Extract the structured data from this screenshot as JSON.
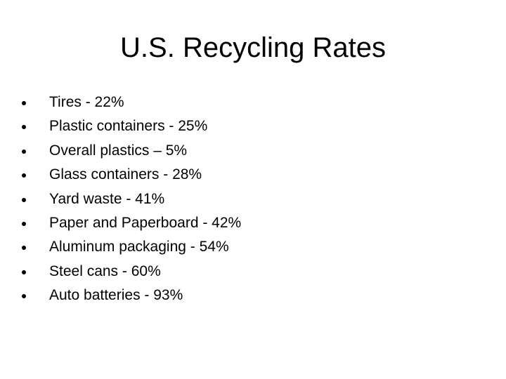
{
  "slide": {
    "title": "U.S. Recycling Rates",
    "items": [
      "Tires - 22%",
      "Plastic containers - 25%",
      "Overall plastics – 5%",
      "Glass containers - 28%",
      "Yard waste - 41%",
      "Paper and Paperboard - 42%",
      "Aluminum packaging - 54%",
      "Steel cans - 60%",
      "Auto batteries - 93%"
    ]
  }
}
